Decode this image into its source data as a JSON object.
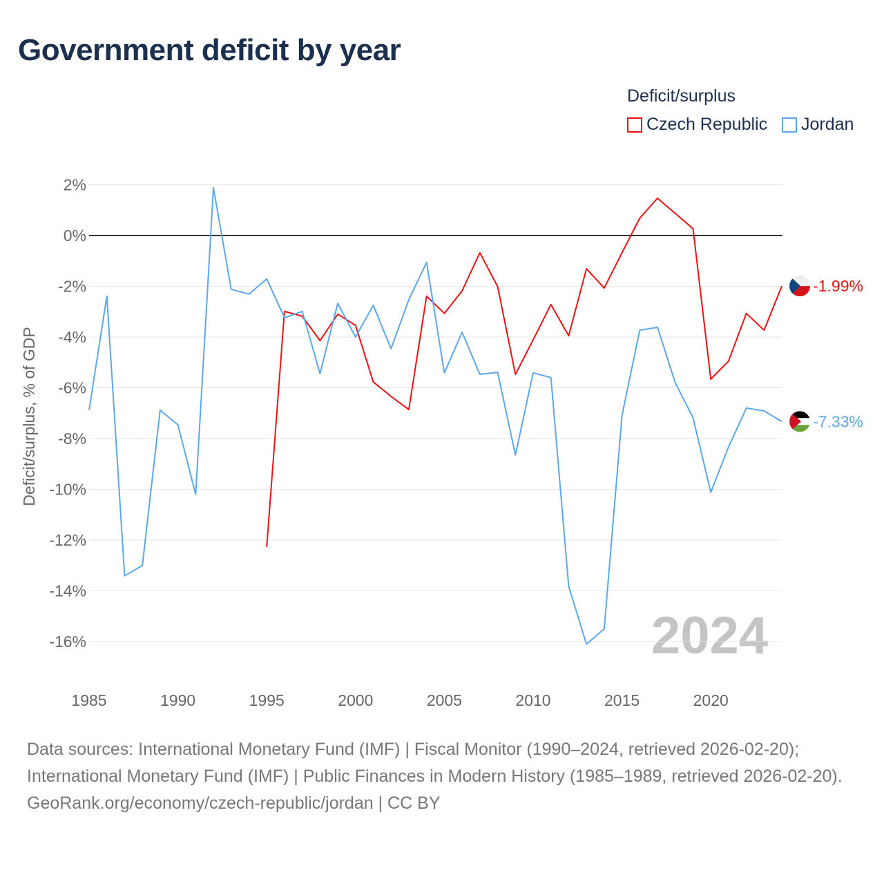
{
  "title": "Government deficit by year",
  "legend": {
    "title": "Deficit/surplus",
    "items": [
      "Czech Republic",
      "Jordan"
    ]
  },
  "footer": {
    "line1": "Data sources: International Monetary Fund (IMF) | Fiscal Monitor (1990–2024, retrieved 2026-02-20); International Monetary Fund (IMF) | Public Finances in Modern History (1985–1989, retrieved 2026-02-20).",
    "line2": "GeoRank.org/economy/czech-republic/jordan | CC BY"
  },
  "chart_data": {
    "type": "line",
    "title": "Government deficit by year",
    "xlabel": "",
    "ylabel": "Deficit/surplus, % of GDP",
    "xlim": [
      1985,
      2024
    ],
    "ylim": [
      -17,
      2.5
    ],
    "yticks": [
      2,
      0,
      -2,
      -4,
      -6,
      -8,
      -10,
      -12,
      -14,
      -16
    ],
    "ytick_labels": [
      "2%",
      "0%",
      "-2%",
      "-4%",
      "-6%",
      "-8%",
      "-10%",
      "-12%",
      "-14%",
      "-16%"
    ],
    "xticks": [
      1985,
      1990,
      1995,
      2000,
      2005,
      2010,
      2015,
      2020
    ],
    "xtick_labels": [
      "1985",
      "1990",
      "1995",
      "2000",
      "2005",
      "2010",
      "2015",
      "2020"
    ],
    "watermark_year": "2024",
    "grid": true,
    "legend_position": "top-right",
    "series": [
      {
        "name": "Czech Republic",
        "color": "#ee1111",
        "end_label": "-1.99%",
        "x": [
          1995,
          1996,
          1997,
          1998,
          1999,
          2000,
          2001,
          2002,
          2003,
          2004,
          2005,
          2006,
          2007,
          2008,
          2009,
          2010,
          2011,
          2012,
          2013,
          2014,
          2015,
          2016,
          2017,
          2018,
          2019,
          2020,
          2021,
          2022,
          2023,
          2024
        ],
        "values": [
          -12.27,
          -2.99,
          -3.18,
          -4.14,
          -3.1,
          -3.54,
          -5.77,
          -6.34,
          -6.86,
          -2.39,
          -3.07,
          -2.18,
          -0.68,
          -2.01,
          -5.47,
          -4.11,
          -2.72,
          -3.95,
          -1.31,
          -2.07,
          -0.68,
          0.68,
          1.47,
          0.87,
          0.27,
          -5.66,
          -4.95,
          -3.07,
          -3.73,
          -1.99
        ]
      },
      {
        "name": "Jordan",
        "color": "#5ba7ea",
        "end_label": "-7.33%",
        "x": [
          1985,
          1986,
          1987,
          1988,
          1989,
          1990,
          1991,
          1992,
          1993,
          1994,
          1995,
          1996,
          1997,
          1998,
          1999,
          2000,
          2001,
          2002,
          2003,
          2004,
          2005,
          2006,
          2007,
          2008,
          2009,
          2010,
          2011,
          2012,
          2013,
          2014,
          2015,
          2016,
          2017,
          2018,
          2019,
          2020,
          2021,
          2022,
          2023,
          2024
        ],
        "values": [
          -6.88,
          -2.39,
          -13.41,
          -13.0,
          -6.88,
          -7.46,
          -10.2,
          1.88,
          -2.12,
          -2.31,
          -1.71,
          -3.24,
          -2.99,
          -5.44,
          -2.67,
          -4.0,
          -2.75,
          -4.46,
          -2.53,
          -1.06,
          -5.41,
          -3.81,
          -5.47,
          -5.39,
          -8.65,
          -5.41,
          -5.6,
          -13.82,
          -16.1,
          -15.5,
          -7.1,
          -3.73,
          -3.62,
          -5.8,
          -7.18,
          -10.12,
          -8.33,
          -6.8,
          -6.91,
          -7.33
        ]
      }
    ]
  }
}
